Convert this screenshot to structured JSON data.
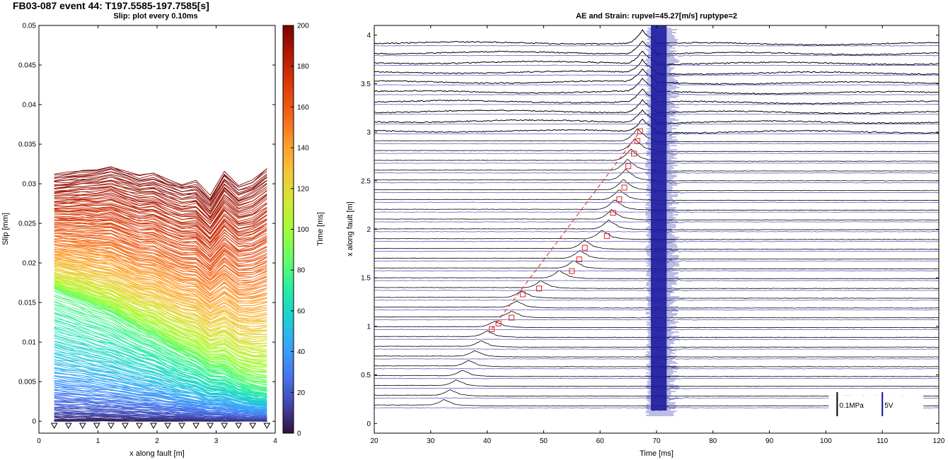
{
  "figure": {
    "title": "FB03-087 event 44: T197.5585-197.7585[s]"
  },
  "colormap": [
    "#30123b",
    "#4145ab",
    "#4675ed",
    "#39a2fc",
    "#1bcfd4",
    "#24eca6",
    "#61fc6c",
    "#a4fc3b",
    "#d1e834",
    "#f3c63a",
    "#fe9b2d",
    "#f36315",
    "#d93806",
    "#b11901",
    "#7a0402"
  ],
  "chart_data": [
    {
      "type": "line",
      "title": "Slip: plot every 0.10ms",
      "xlabel": "x along fault [m]",
      "ylabel": "Slip [mm]",
      "xlim": [
        0,
        4
      ],
      "ylim": [
        -0.0015,
        0.05
      ],
      "xticks": [
        "0",
        "1",
        "2",
        "3",
        "4"
      ],
      "yticks": [
        "0",
        "0.005",
        "0.01",
        "0.015",
        "0.02",
        "0.025",
        "0.03",
        "0.035",
        "0.04",
        "0.045",
        "0.05"
      ],
      "grid": false,
      "sensor_x": [
        0.26,
        0.5,
        0.74,
        0.98,
        1.22,
        1.46,
        1.7,
        1.94,
        2.18,
        2.42,
        2.66,
        2.9,
        3.14,
        3.38,
        3.62,
        3.86
      ],
      "final_slip": [
        0.0312,
        0.0314,
        0.0317,
        0.0318,
        0.0322,
        0.0316,
        0.0311,
        0.0314,
        0.0306,
        0.03,
        0.0303,
        0.0284,
        0.0315,
        0.0298,
        0.0305,
        0.032
      ],
      "colorbar": {
        "label": "Time [ms]",
        "lim": [
          0,
          200
        ],
        "ticks": [
          "0",
          "20",
          "40",
          "60",
          "80",
          "100",
          "120",
          "140",
          "160",
          "180",
          "200"
        ]
      }
    },
    {
      "type": "line",
      "title": "AE and Strain: rupvel=45.27[m/s] ruptype=2",
      "xlabel": "Time [ms]",
      "ylabel": "x along fault [m]",
      "xlim": [
        20,
        120
      ],
      "ylim": [
        -0.1,
        4.1
      ],
      "xticks": [
        "20",
        "30",
        "40",
        "50",
        "60",
        "70",
        "80",
        "90",
        "100",
        "110",
        "120"
      ],
      "yticks": [
        "0",
        "0.5",
        "1",
        "1.5",
        "2",
        "2.5",
        "3",
        "3.5",
        "4"
      ],
      "grid": false,
      "ae_burst_time": 70,
      "rupture_picks": {
        "time": [
          40.8,
          42.0,
          44.3,
          46.3,
          49.2,
          55.0,
          56.3,
          57.3,
          61.2,
          62.3,
          63.4,
          64.3,
          65.0,
          66.0,
          66.6,
          67.1
        ],
        "x": [
          0.97,
          1.03,
          1.09,
          1.33,
          1.39,
          1.57,
          1.69,
          1.81,
          1.93,
          2.17,
          2.31,
          2.43,
          2.65,
          2.78,
          2.91,
          3.01
        ]
      },
      "scale_bars": [
        {
          "label": "0.1MPa",
          "color": "#000000"
        },
        {
          "label": "5V",
          "color": "#1010a0"
        }
      ]
    }
  ]
}
